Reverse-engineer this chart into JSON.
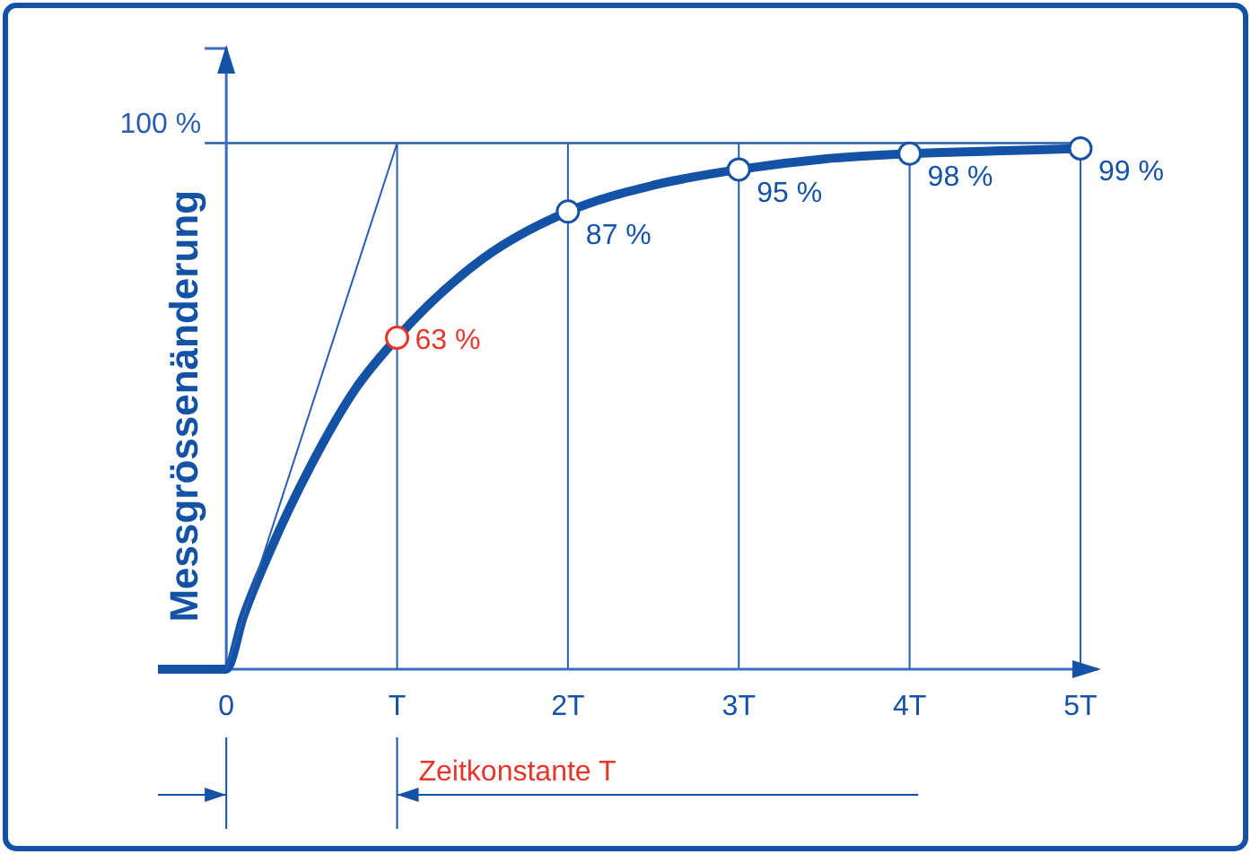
{
  "chart_data": {
    "type": "line",
    "ylabel": "Messgrössenänderung",
    "xlim": [
      -0.4,
      5.1
    ],
    "ylim": [
      0,
      118
    ],
    "xticks": [
      0,
      {
        "value": 1,
        "label": "T"
      },
      {
        "value": 2,
        "label": "2T"
      },
      {
        "value": 3,
        "label": "3T"
      },
      {
        "value": 4,
        "label": "4T"
      },
      {
        "value": 5,
        "label": "5T"
      }
    ],
    "grid": "x",
    "ref_lines": [
      {
        "axis": "y",
        "value": 100,
        "label": "100 %",
        "color": "#2a5cb0"
      }
    ],
    "annotations": [
      "Zeitkonstante T"
    ],
    "series": [
      {
        "color": "#1452a6",
        "x": [
          -0.4,
          0,
          0.1,
          0.25,
          0.5,
          0.75,
          1,
          1.5,
          2,
          2.5,
          3,
          3.5,
          4,
          4.5,
          5
        ],
        "values": [
          0,
          0,
          10,
          22,
          39,
          53,
          63,
          78,
          87,
          92,
          95,
          97,
          98,
          98.5,
          99
        ]
      },
      {
        "color": "#2a5cb0",
        "x": [
          0,
          1
        ],
        "values": [
          0,
          100
        ]
      },
      {
        "type": "scatter",
        "colors": [
          "#e8352a",
          "#1452a6",
          "#1452a6",
          "#1452a6",
          "#1452a6"
        ],
        "marker": "circle",
        "x": [
          1,
          2,
          3,
          4,
          5
        ],
        "values": [
          63,
          87,
          95,
          98,
          99
        ],
        "value_labels": [
          "63 %",
          "87 %",
          "95 %",
          "98 %",
          "99 %"
        ]
      }
    ]
  }
}
